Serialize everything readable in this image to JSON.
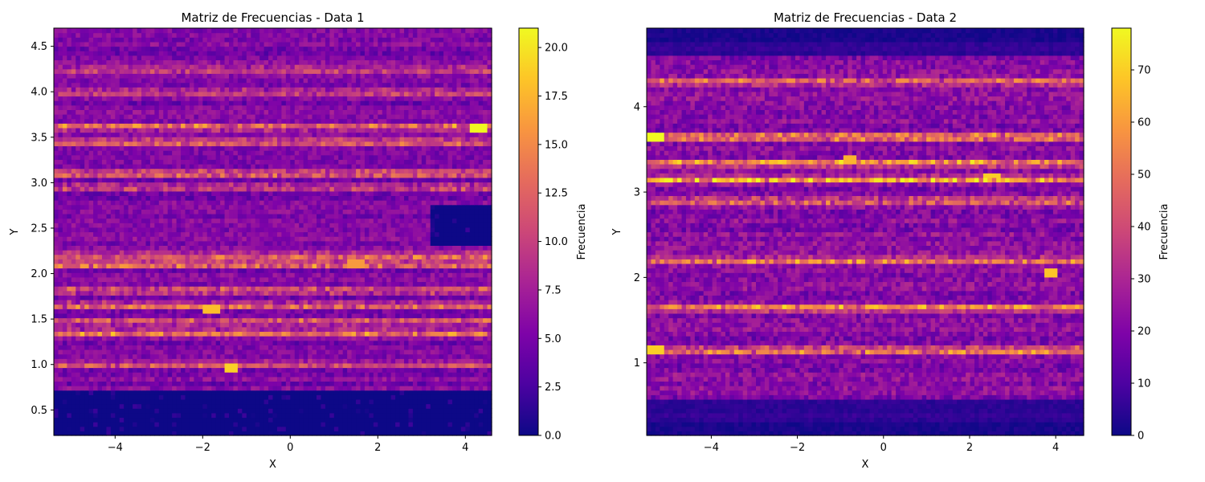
{
  "chart_data": [
    {
      "type": "heatmap",
      "title": "Matriz de Frecuencias - Data 1",
      "xlabel": "X",
      "ylabel": "Y",
      "xlim": [
        -5.4,
        4.6
      ],
      "ylim": [
        0.22,
        4.7
      ],
      "xticks": [
        -4,
        -2,
        0,
        2,
        4
      ],
      "xtick_labels": [
        "−4",
        "−2",
        "0",
        "2",
        "4"
      ],
      "yticks": [
        0.5,
        1.0,
        1.5,
        2.0,
        2.5,
        3.0,
        3.5,
        4.0,
        4.5
      ],
      "ytick_labels": [
        "0.5",
        "1.0",
        "1.5",
        "2.0",
        "2.5",
        "3.0",
        "3.5",
        "4.0",
        "4.5"
      ],
      "colormap": "plasma",
      "colorbar": {
        "label": "Frecuencia",
        "vmin": 0,
        "vmax": 21,
        "ticks": [
          0,
          2.5,
          5.0,
          7.5,
          10.0,
          12.5,
          15.0,
          17.5,
          20.0
        ],
        "tick_labels": [
          "0.0",
          "2.5",
          "5.0",
          "7.5",
          "10.0",
          "12.5",
          "15.0",
          "17.5",
          "20.0"
        ]
      },
      "grid_bins": [
        100,
        90
      ],
      "bands": [
        {
          "y": 3.62,
          "intensity": 12
        },
        {
          "y": 3.45,
          "intensity": 10
        },
        {
          "y": 3.1,
          "intensity": 11
        },
        {
          "y": 2.95,
          "intensity": 9
        },
        {
          "y": 2.2,
          "intensity": 10
        },
        {
          "y": 2.1,
          "intensity": 12
        },
        {
          "y": 1.82,
          "intensity": 11
        },
        {
          "y": 1.65,
          "intensity": 12
        },
        {
          "y": 1.48,
          "intensity": 10
        },
        {
          "y": 1.35,
          "intensity": 11
        },
        {
          "y": 1.0,
          "intensity": 8
        },
        {
          "y": 4.0,
          "intensity": 8
        },
        {
          "y": 4.25,
          "intensity": 7
        }
      ],
      "hotspots": [
        {
          "x": 4.3,
          "y": 3.6,
          "value": 21
        },
        {
          "x": -1.35,
          "y": 0.98,
          "value": 19
        },
        {
          "x": -1.8,
          "y": 1.6,
          "value": 18
        },
        {
          "x": 1.5,
          "y": 2.1,
          "value": 16
        }
      ],
      "empty_regions": [
        {
          "x": [
            -5.4,
            4.6
          ],
          "y": [
            0.22,
            0.72
          ]
        },
        {
          "x": [
            3.2,
            4.6
          ],
          "y": [
            2.3,
            2.75
          ]
        }
      ]
    },
    {
      "type": "heatmap",
      "title": "Matriz de Frecuencias - Data 2",
      "xlabel": "X",
      "ylabel": "Y",
      "xlim": [
        -5.5,
        4.65
      ],
      "ylim": [
        0.15,
        4.92
      ],
      "xticks": [
        -4,
        -2,
        0,
        2,
        4
      ],
      "xtick_labels": [
        "−4",
        "−2",
        "0",
        "2",
        "4"
      ],
      "yticks": [
        1,
        2,
        3,
        4
      ],
      "ytick_labels": [
        "1",
        "2",
        "3",
        "4"
      ],
      "colormap": "plasma",
      "colorbar": {
        "label": "Frecuencia",
        "vmin": 0,
        "vmax": 78,
        "ticks": [
          0,
          10,
          20,
          30,
          40,
          50,
          60,
          70
        ],
        "tick_labels": [
          "0",
          "10",
          "20",
          "30",
          "40",
          "50",
          "60",
          "70"
        ]
      },
      "grid_bins": [
        100,
        90
      ],
      "bands": [
        {
          "y": 3.65,
          "intensity": 55
        },
        {
          "y": 3.35,
          "intensity": 50
        },
        {
          "y": 3.15,
          "intensity": 55
        },
        {
          "y": 2.9,
          "intensity": 45
        },
        {
          "y": 2.2,
          "intensity": 40
        },
        {
          "y": 1.65,
          "intensity": 45
        },
        {
          "y": 1.15,
          "intensity": 52
        },
        {
          "y": 4.3,
          "intensity": 40
        }
      ],
      "hotspots": [
        {
          "x": -5.3,
          "y": 3.65,
          "value": 78
        },
        {
          "x": -5.3,
          "y": 1.15,
          "value": 70
        },
        {
          "x": 2.5,
          "y": 3.2,
          "value": 70
        },
        {
          "x": 3.9,
          "y": 2.05,
          "value": 68
        },
        {
          "x": -0.8,
          "y": 3.4,
          "value": 65
        }
      ],
      "empty_regions": []
    }
  ]
}
